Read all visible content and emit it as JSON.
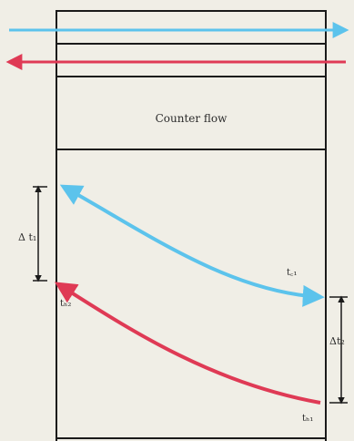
{
  "diagram": {
    "title": "Counter flow",
    "labels": {
      "delta_left": "Δ t₁",
      "delta_right": "Δt₂",
      "cold_out": "t꜀₁",
      "cold_in": "t꜀₂",
      "hot_in": "tₕ₁",
      "hot_out": "tₕ₂"
    }
  },
  "colors": {
    "cold_stream": "#5cc3ec",
    "hot_stream": "#df3a55",
    "outline": "#1a1a1a",
    "background": "#f0eee6"
  }
}
